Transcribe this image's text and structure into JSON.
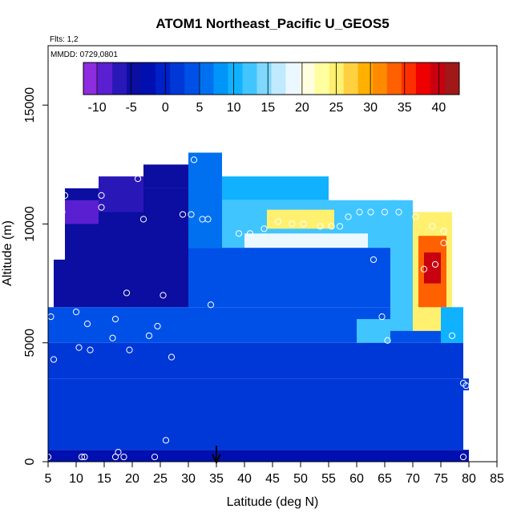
{
  "chart_data": {
    "type": "heatmap",
    "title": "ATOM1 Northeast_Pacific U_GEOS5",
    "flights_label": "Flts: 1,2",
    "date_label": "MMDD: 0729,0801",
    "xlabel": "Latitude (deg N)",
    "ylabel": "Altitude (m)",
    "xlim": [
      5,
      85
    ],
    "ylim": [
      0,
      17500
    ],
    "x_ticks": [
      "5",
      "10",
      "15",
      "20",
      "25",
      "30",
      "35",
      "40",
      "45",
      "50",
      "55",
      "60",
      "65",
      "70",
      "75",
      "80",
      "85"
    ],
    "y_ticks": [
      "0",
      "5000",
      "10000",
      "15000"
    ],
    "colorbar": {
      "min": -12,
      "max": 43,
      "tick_labels": [
        "-10",
        "-5",
        "0",
        "5",
        "10",
        "15",
        "20",
        "25",
        "30",
        "35",
        "40"
      ],
      "colors": [
        "#8e2ce0",
        "#5a1fd0",
        "#2a17b8",
        "#0b0ea0",
        "#0010b0",
        "#0020c8",
        "#0038d8",
        "#0050e8",
        "#0070f0",
        "#0095f8",
        "#10b2ff",
        "#40c5ff",
        "#80d8ff",
        "#bfeaff",
        "#ecf8ff",
        "#ffffe0",
        "#ffffa0",
        "#fff070",
        "#ffd040",
        "#ffb000",
        "#ff8a00",
        "#ff6000",
        "#ff3000",
        "#ee0000",
        "#c80010",
        "#a01818"
      ]
    },
    "flight_marker_lat": 35,
    "grid": false,
    "legend": "colorbar top",
    "regions": [
      {
        "lat": [
          5,
          80
        ],
        "alt": [
          0,
          500
        ],
        "value": -1.5
      },
      {
        "lat": [
          5,
          79
        ],
        "alt": [
          500,
          3500
        ],
        "value": 1.5
      },
      {
        "lat": [
          79,
          80
        ],
        "alt": [
          3000,
          3500
        ],
        "value": 1
      },
      {
        "lat": [
          5,
          79
        ],
        "alt": [
          3500,
          5000
        ],
        "value": 2.5
      },
      {
        "lat": [
          5,
          75
        ],
        "alt": [
          5000,
          6500
        ],
        "value": 3
      },
      {
        "lat": [
          6,
          8
        ],
        "alt": [
          6500,
          8500
        ],
        "value": -4
      },
      {
        "lat": [
          8,
          30
        ],
        "alt": [
          6500,
          11500
        ],
        "value": -5
      },
      {
        "lat": [
          22,
          30
        ],
        "alt": [
          11500,
          12500
        ],
        "value": -4
      },
      {
        "lat": [
          14,
          22
        ],
        "alt": [
          10500,
          12000
        ],
        "value": -7
      },
      {
        "lat": [
          8,
          14
        ],
        "alt": [
          10000,
          11000
        ],
        "value": -9
      },
      {
        "lat": [
          30,
          66
        ],
        "alt": [
          6500,
          9000
        ],
        "value": 4
      },
      {
        "lat": [
          30,
          36
        ],
        "alt": [
          9000,
          13000
        ],
        "value": 6
      },
      {
        "lat": [
          36,
          55
        ],
        "alt": [
          11000,
          12000
        ],
        "value": 10
      },
      {
        "lat": [
          36,
          67
        ],
        "alt": [
          9000,
          11000
        ],
        "value": 13
      },
      {
        "lat": [
          44,
          56
        ],
        "alt": [
          9800,
          10600
        ],
        "value": 24
      },
      {
        "lat": [
          40,
          62
        ],
        "alt": [
          9000,
          9600
        ],
        "value": 18
      },
      {
        "lat": [
          66,
          70
        ],
        "alt": [
          5500,
          11000
        ],
        "value": 12
      },
      {
        "lat": [
          70,
          77
        ],
        "alt": [
          5500,
          10500
        ],
        "value": 24
      },
      {
        "lat": [
          71,
          76
        ],
        "alt": [
          6500,
          9500
        ],
        "value": 34
      },
      {
        "lat": [
          72,
          75
        ],
        "alt": [
          7500,
          8800
        ],
        "value": 40
      },
      {
        "lat": [
          75,
          79
        ],
        "alt": [
          5000,
          6500
        ],
        "value": 11
      },
      {
        "lat": [
          60,
          66
        ],
        "alt": [
          5000,
          6000
        ],
        "value": 12
      }
    ],
    "sample_points": [
      {
        "lat": 5.5,
        "alt": 6100
      },
      {
        "lat": 6,
        "alt": 4300
      },
      {
        "lat": 7.5,
        "alt": 10500
      },
      {
        "lat": 8,
        "alt": 11200
      },
      {
        "lat": 10,
        "alt": 6300
      },
      {
        "lat": 10.5,
        "alt": 4800
      },
      {
        "lat": 12,
        "alt": 5800
      },
      {
        "lat": 12.5,
        "alt": 4700
      },
      {
        "lat": 14.5,
        "alt": 11200
      },
      {
        "lat": 14.5,
        "alt": 10700
      },
      {
        "lat": 16.5,
        "alt": 5200
      },
      {
        "lat": 17,
        "alt": 6000
      },
      {
        "lat": 19,
        "alt": 7100
      },
      {
        "lat": 19.5,
        "alt": 4700
      },
      {
        "lat": 21,
        "alt": 11900
      },
      {
        "lat": 22,
        "alt": 10200
      },
      {
        "lat": 23,
        "alt": 5300
      },
      {
        "lat": 24.5,
        "alt": 5700
      },
      {
        "lat": 25.5,
        "alt": 7000
      },
      {
        "lat": 27,
        "alt": 4400
      },
      {
        "lat": 28.5,
        "alt": 12700
      },
      {
        "lat": 29,
        "alt": 10400
      },
      {
        "lat": 30.5,
        "alt": 10400
      },
      {
        "lat": 31,
        "alt": 12700
      },
      {
        "lat": 32.5,
        "alt": 10200
      },
      {
        "lat": 33.5,
        "alt": 10200
      },
      {
        "lat": 34,
        "alt": 6600
      },
      {
        "lat": 39,
        "alt": 9600
      },
      {
        "lat": 41,
        "alt": 9600
      },
      {
        "lat": 43.5,
        "alt": 9800
      },
      {
        "lat": 46,
        "alt": 10100
      },
      {
        "lat": 48.5,
        "alt": 10000
      },
      {
        "lat": 50.5,
        "alt": 10000
      },
      {
        "lat": 53.5,
        "alt": 9900
      },
      {
        "lat": 55.5,
        "alt": 9900
      },
      {
        "lat": 57,
        "alt": 9900
      },
      {
        "lat": 58.5,
        "alt": 10300
      },
      {
        "lat": 60.5,
        "alt": 10500
      },
      {
        "lat": 62.5,
        "alt": 10500
      },
      {
        "lat": 65,
        "alt": 10500
      },
      {
        "lat": 67.5,
        "alt": 10500
      },
      {
        "lat": 70.5,
        "alt": 10300
      },
      {
        "lat": 73.5,
        "alt": 9900
      },
      {
        "lat": 75.5,
        "alt": 9700
      },
      {
        "lat": 75.5,
        "alt": 9200
      },
      {
        "lat": 72,
        "alt": 8100
      },
      {
        "lat": 74,
        "alt": 8300
      },
      {
        "lat": 63,
        "alt": 8500
      },
      {
        "lat": 64.5,
        "alt": 6100
      },
      {
        "lat": 65.5,
        "alt": 5100
      },
      {
        "lat": 77,
        "alt": 5300
      },
      {
        "lat": 79,
        "alt": 3300
      },
      {
        "lat": 79.5,
        "alt": 3200
      },
      {
        "lat": 79,
        "alt": 200
      },
      {
        "lat": 5,
        "alt": 200
      },
      {
        "lat": 11,
        "alt": 200
      },
      {
        "lat": 11.5,
        "alt": 200
      },
      {
        "lat": 17,
        "alt": 200
      },
      {
        "lat": 17.5,
        "alt": 400
      },
      {
        "lat": 18.5,
        "alt": 200
      },
      {
        "lat": 24,
        "alt": 200
      },
      {
        "lat": 26,
        "alt": 900
      }
    ]
  }
}
